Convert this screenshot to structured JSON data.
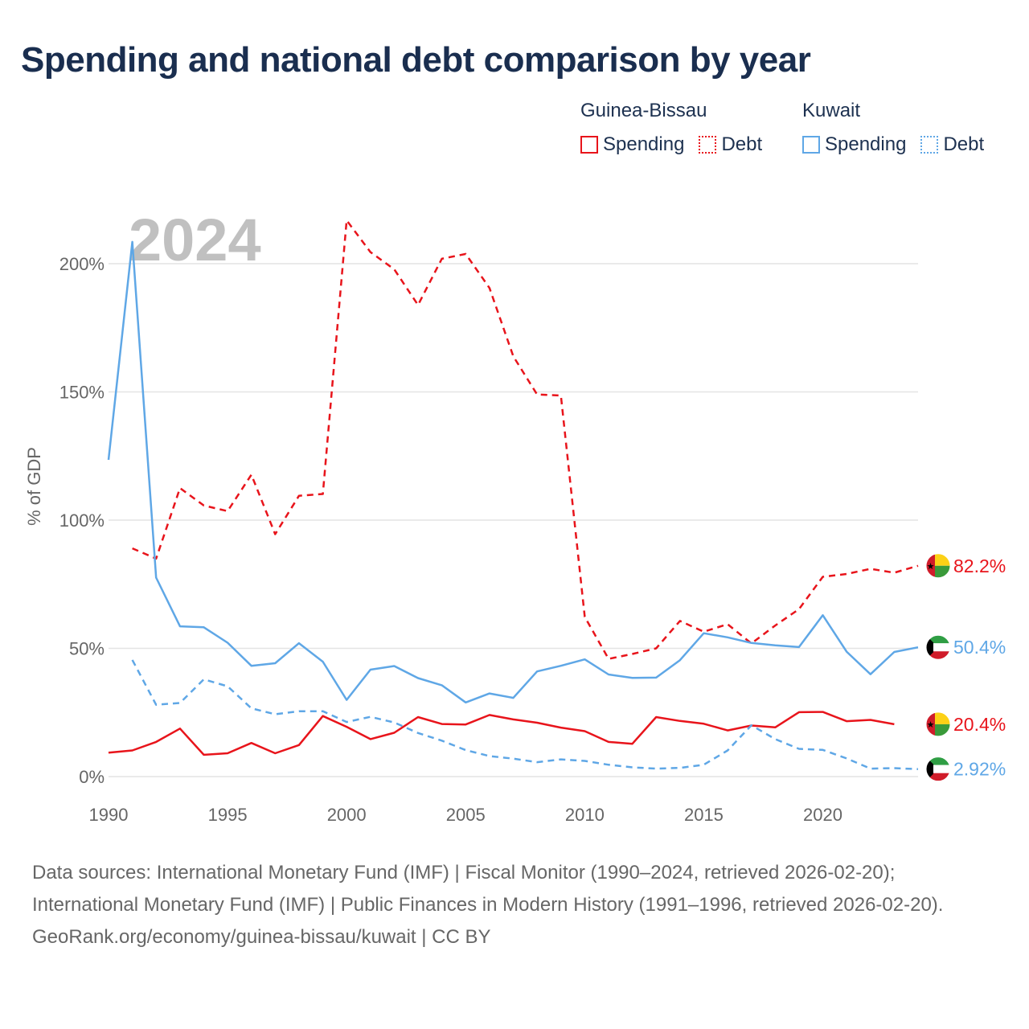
{
  "title": "Spending and national debt comparison by year",
  "legend": {
    "groups": [
      {
        "country": "Guinea-Bissau",
        "spending_label": "Spending",
        "debt_label": "Debt"
      },
      {
        "country": "Kuwait",
        "spending_label": "Spending",
        "debt_label": "Debt"
      }
    ]
  },
  "colors": {
    "guinea_bissau": "#e8141b",
    "kuwait": "#5fa7e6",
    "year_watermark": "#c0c0c0",
    "grid": "#e4e4e4"
  },
  "chart_data": {
    "type": "line",
    "title": "Spending and national debt comparison by year",
    "xlabel": "",
    "ylabel": "% of GDP",
    "year_label": "2024",
    "xlim": [
      1990,
      2024
    ],
    "ylim": [
      0,
      215
    ],
    "x_ticks": [
      1990,
      1995,
      2000,
      2005,
      2010,
      2015,
      2020
    ],
    "y_ticks": [
      {
        "value": 0,
        "label": "0%"
      },
      {
        "value": 50,
        "label": "50%"
      },
      {
        "value": 100,
        "label": "100%"
      },
      {
        "value": 150,
        "label": "150%"
      },
      {
        "value": 200,
        "label": "200%"
      }
    ],
    "series": [
      {
        "name": "Guinea-Bissau Spending",
        "country": "Guinea-Bissau",
        "style": "solid",
        "color": "#e8141b",
        "end_label": "20.4%",
        "x": [
          1990,
          1991,
          1992,
          1993,
          1994,
          1995,
          1996,
          1997,
          1998,
          1999,
          2000,
          2001,
          2002,
          2003,
          2004,
          2005,
          2006,
          2007,
          2008,
          2009,
          2010,
          2011,
          2012,
          2013,
          2014,
          2015,
          2016,
          2017,
          2018,
          2019,
          2020,
          2021,
          2022,
          2023,
          2024
        ],
        "values": [
          9.3,
          10.2,
          13.5,
          18.7,
          8.5,
          9.1,
          13.1,
          9.1,
          12.3,
          23.6,
          19.4,
          14.6,
          17.1,
          23.2,
          20.5,
          20.3,
          24.0,
          22.3,
          21.0,
          19.1,
          17.7,
          13.5,
          12.8,
          23.2,
          21.7,
          20.6,
          18.0,
          19.9,
          19.2,
          25.1,
          25.2,
          21.6,
          22.1,
          20.4,
          null
        ]
      },
      {
        "name": "Guinea-Bissau Debt",
        "country": "Guinea-Bissau",
        "style": "dashed",
        "color": "#e8141b",
        "end_label": "82.2%",
        "x": [
          1991,
          1992,
          1993,
          1994,
          1995,
          1996,
          1997,
          1998,
          1999,
          2000,
          2001,
          2002,
          2003,
          2004,
          2005,
          2006,
          2007,
          2008,
          2009,
          2010,
          2011,
          2012,
          2013,
          2014,
          2015,
          2016,
          2017,
          2018,
          2019,
          2020,
          2021,
          2022,
          2023,
          2024
        ],
        "values": [
          89.0,
          85.0,
          112.5,
          105.7,
          103.5,
          117.7,
          94.5,
          109.5,
          110.2,
          216.9,
          204.5,
          197.8,
          183.9,
          201.9,
          203.8,
          190.5,
          163.9,
          149.0,
          148.6,
          62.3,
          45.9,
          47.8,
          50.0,
          60.7,
          56.5,
          59.4,
          51.9,
          58.9,
          65.3,
          77.9,
          79.0,
          81.0,
          79.5,
          82.2
        ]
      },
      {
        "name": "Kuwait Spending",
        "country": "Kuwait",
        "style": "solid",
        "color": "#5fa7e6",
        "end_label": "50.4%",
        "x": [
          1990,
          1991,
          1992,
          1993,
          1994,
          1995,
          1996,
          1997,
          1998,
          1999,
          2000,
          2001,
          2002,
          2003,
          2004,
          2005,
          2006,
          2007,
          2008,
          2009,
          2010,
          2011,
          2012,
          2013,
          2014,
          2015,
          2016,
          2017,
          2018,
          2019,
          2020,
          2021,
          2022,
          2023,
          2024
        ],
        "values": [
          123.5,
          208.5,
          77.6,
          58.6,
          58.2,
          52.2,
          43.2,
          44.2,
          52.0,
          44.8,
          29.9,
          41.7,
          43.1,
          38.4,
          35.6,
          28.9,
          32.4,
          30.7,
          41.0,
          43.2,
          45.7,
          39.8,
          38.5,
          38.6,
          45.4,
          55.9,
          54.3,
          52.1,
          51.2,
          50.5,
          62.9,
          48.7,
          39.9,
          48.6,
          50.4
        ]
      },
      {
        "name": "Kuwait Debt",
        "country": "Kuwait",
        "style": "dashed",
        "color": "#5fa7e6",
        "end_label": "2.92%",
        "x": [
          1991,
          1992,
          1993,
          1994,
          1995,
          1996,
          1997,
          1998,
          1999,
          2000,
          2001,
          2002,
          2003,
          2004,
          2005,
          2006,
          2007,
          2008,
          2009,
          2010,
          2011,
          2012,
          2013,
          2014,
          2015,
          2016,
          2017,
          2018,
          2019,
          2020,
          2021,
          2022,
          2023,
          2024
        ],
        "values": [
          45.5,
          28.0,
          28.7,
          37.9,
          35.2,
          26.6,
          24.3,
          25.5,
          25.5,
          21.3,
          23.3,
          21.1,
          17.0,
          14.0,
          10.3,
          8.0,
          7.0,
          5.6,
          6.7,
          6.1,
          4.6,
          3.6,
          3.1,
          3.4,
          4.6,
          10.2,
          20.0,
          14.6,
          10.8,
          10.4,
          7.1,
          3.1,
          3.3,
          2.92
        ]
      }
    ]
  },
  "footer": {
    "sources": "Data sources: International Monetary Fund (IMF) | Fiscal Monitor (1990–2024, retrieved 2026-02-20); International Monetary Fund (IMF) | Public Finances in Modern History (1991–1996, retrieved 2026-02-20).",
    "credit": "GeoRank.org/economy/guinea-bissau/kuwait | CC BY"
  }
}
